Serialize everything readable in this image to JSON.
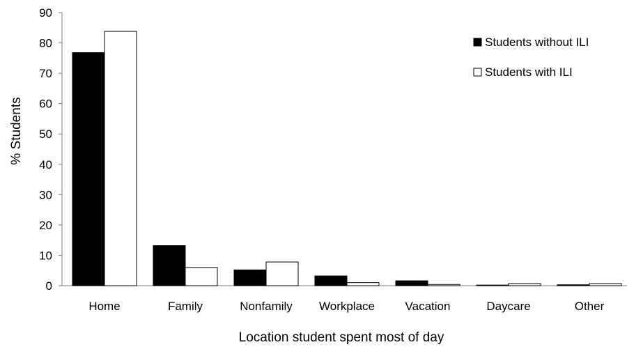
{
  "chart_data": {
    "type": "bar",
    "title": "",
    "xlabel": "Location student spent most of day",
    "ylabel": "% Students",
    "ylim": [
      0,
      90
    ],
    "yticks": [
      0,
      10,
      20,
      30,
      40,
      50,
      60,
      70,
      80,
      90
    ],
    "grid": false,
    "legend_position": "top-right",
    "categories": [
      "Home",
      "Family",
      "Nonfamily",
      "Workplace",
      "Vacation",
      "Daycare",
      "Other"
    ],
    "series": [
      {
        "name": "Students without ILI",
        "color": "#000000",
        "values": [
          76.8,
          13.2,
          5.2,
          3.2,
          1.6,
          0.2,
          0.3
        ]
      },
      {
        "name": "Students with ILI",
        "color": "#ffffff",
        "values": [
          83.8,
          6.0,
          7.8,
          1.0,
          0.4,
          0.7,
          0.7
        ]
      }
    ]
  }
}
